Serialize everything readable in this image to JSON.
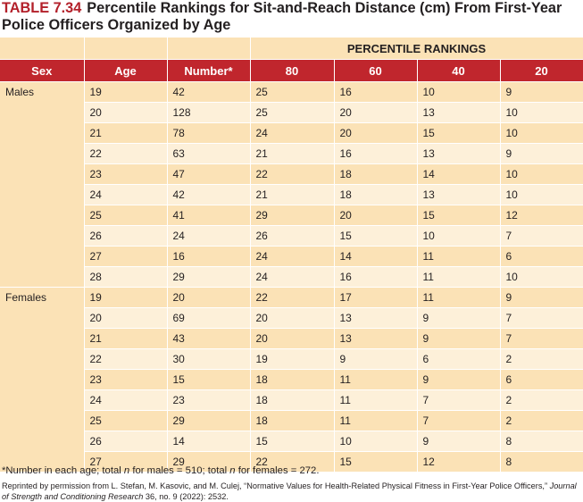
{
  "title": {
    "number": "TABLE 7.34",
    "text": "Percentile Rankings for Sit-and-Reach Distance (cm) From First-Year Police Officers Organized by Age"
  },
  "table": {
    "group_header": "PERCENTILE RANKINGS",
    "columns": [
      "Sex",
      "Age",
      "Number*",
      "80",
      "60",
      "40",
      "20"
    ],
    "groups": [
      {
        "sex": "Males",
        "rows": [
          [
            "19",
            "42",
            "25",
            "16",
            "10",
            "9"
          ],
          [
            "20",
            "128",
            "25",
            "20",
            "13",
            "10"
          ],
          [
            "21",
            "78",
            "24",
            "20",
            "15",
            "10"
          ],
          [
            "22",
            "63",
            "21",
            "16",
            "13",
            "9"
          ],
          [
            "23",
            "47",
            "22",
            "18",
            "14",
            "10"
          ],
          [
            "24",
            "42",
            "21",
            "18",
            "13",
            "10"
          ],
          [
            "25",
            "41",
            "29",
            "20",
            "15",
            "12"
          ],
          [
            "26",
            "24",
            "26",
            "15",
            "10",
            "7"
          ],
          [
            "27",
            "16",
            "24",
            "14",
            "11",
            "6"
          ],
          [
            "28",
            "29",
            "24",
            "16",
            "11",
            "10"
          ]
        ]
      },
      {
        "sex": "Females",
        "rows": [
          [
            "19",
            "20",
            "22",
            "17",
            "11",
            "9"
          ],
          [
            "20",
            "69",
            "20",
            "13",
            "9",
            "7"
          ],
          [
            "21",
            "43",
            "20",
            "13",
            "9",
            "7"
          ],
          [
            "22",
            "30",
            "19",
            "9",
            "6",
            "2"
          ],
          [
            "23",
            "15",
            "18",
            "11",
            "9",
            "6"
          ],
          [
            "24",
            "23",
            "18",
            "11",
            "7",
            "2"
          ],
          [
            "25",
            "29",
            "18",
            "11",
            "7",
            "2"
          ],
          [
            "26",
            "14",
            "15",
            "10",
            "9",
            "8"
          ],
          [
            "27",
            "29",
            "22",
            "15",
            "12",
            "8"
          ]
        ]
      }
    ]
  },
  "footnote": {
    "part1": "*Number in each age; total ",
    "n1": "n",
    "part2": " for males = 510; total ",
    "n2": "n",
    "part3": " for females = 272."
  },
  "credit": {
    "text": "Reprinted by permission from L. Stefan, M. Kasovic, and M. Culej, “Normative Values for Health-Related Physical Fitness in First-Year Police Officers,” ",
    "journal": "Journal of Strength and Conditioning Research",
    "rest": " 36, no. 9 (2022): 2532."
  },
  "colors": {
    "header_red": "#c0262d",
    "title_red": "#b3202a",
    "cell_tan": "#fbe2b6",
    "cell_light": "#fdf0d9"
  }
}
